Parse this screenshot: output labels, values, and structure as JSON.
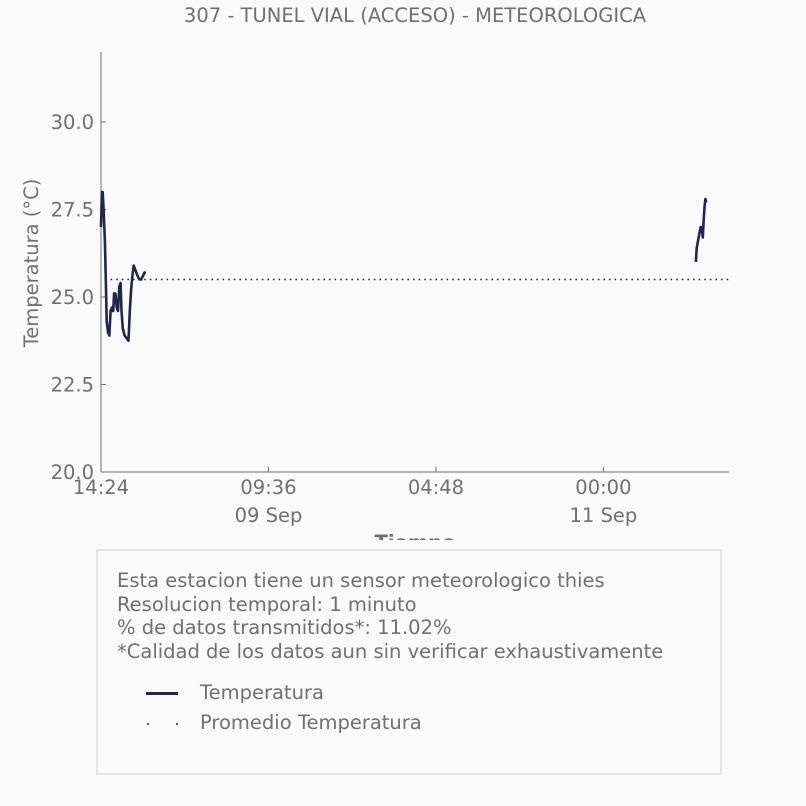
{
  "chart_data": {
    "type": "line",
    "title": "307 - TUNEL VIAL (ACCESO) - METEOROLOGICA",
    "xlabel": "Tiempo",
    "ylabel": "Temperatura (°C)",
    "ylim": [
      20.0,
      32.0
    ],
    "y_ticks": [
      "20.0",
      "22.5",
      "25.0",
      "27.5",
      "30.0"
    ],
    "x_ticks": [
      {
        "label": "14:24",
        "sublabel": "",
        "t": 0
      },
      {
        "label": "09:36",
        "sublabel": "09 Sep",
        "t": 19.2
      },
      {
        "label": "04:48",
        "sublabel": "",
        "t": 38.4
      },
      {
        "label": "00:00",
        "sublabel": "11 Sep",
        "t": 57.6
      }
    ],
    "x_unit": "hours since first tick",
    "xlim": [
      0,
      72
    ],
    "grid": false,
    "series": [
      {
        "name": "Temperatura",
        "style": "solid",
        "color": "#23254a",
        "segments": [
          [
            [
              0.0,
              27.0
            ],
            [
              0.1,
              28.0
            ],
            [
              0.2,
              28.0
            ],
            [
              0.3,
              27.5
            ],
            [
              0.45,
              26.6
            ],
            [
              0.55,
              25.5
            ],
            [
              0.65,
              24.3
            ],
            [
              0.8,
              24.0
            ],
            [
              0.95,
              23.9
            ],
            [
              1.1,
              24.6
            ],
            [
              1.25,
              24.7
            ],
            [
              1.4,
              24.6
            ],
            [
              1.5,
              25.1
            ],
            [
              1.65,
              25.1
            ],
            [
              1.8,
              24.7
            ],
            [
              1.95,
              24.6
            ],
            [
              2.1,
              25.3
            ],
            [
              2.25,
              25.4
            ],
            [
              2.35,
              24.6
            ],
            [
              2.5,
              24.1
            ],
            [
              2.7,
              23.9
            ],
            [
              2.85,
              23.85
            ],
            [
              3.0,
              23.8
            ],
            [
              3.15,
              23.75
            ],
            [
              3.3,
              24.6
            ],
            [
              3.45,
              25.2
            ],
            [
              3.6,
              25.6
            ],
            [
              3.75,
              25.9
            ],
            [
              3.9,
              25.8
            ],
            [
              4.05,
              25.7
            ],
            [
              4.2,
              25.6
            ],
            [
              4.4,
              25.5
            ],
            [
              4.6,
              25.5
            ],
            [
              4.8,
              25.6
            ],
            [
              5.0,
              25.7
            ],
            [
              5.15,
              25.7
            ]
          ],
          [
            [
              68.2,
              26.0
            ],
            [
              68.3,
              26.4
            ],
            [
              68.45,
              26.6
            ],
            [
              68.6,
              26.8
            ],
            [
              68.75,
              27.0
            ],
            [
              68.9,
              26.9
            ],
            [
              69.0,
              26.7
            ],
            [
              69.1,
              27.2
            ],
            [
              69.2,
              27.6
            ],
            [
              69.3,
              27.8
            ],
            [
              69.4,
              27.7
            ]
          ]
        ]
      },
      {
        "name": "Promedio Temperatura",
        "style": "dotted",
        "color": "#23254a",
        "value": 25.5
      }
    ]
  },
  "info_box": {
    "lines": [
      "Esta estacion tiene un sensor meteorologico thies",
      "Resolucion temporal: 1 minuto",
      "% de datos transmitidos*: 11.02%",
      "*Calidad de los datos aun sin verificar exhaustivamente"
    ],
    "legend": [
      {
        "label": "Temperatura",
        "style": "solid"
      },
      {
        "label": "Promedio Temperatura",
        "style": "dotted"
      }
    ]
  },
  "colors": {
    "series": "#23254a",
    "text": "#707070",
    "axis": "#707070",
    "box_border": "#e4e4e4",
    "background": "#fafafa"
  }
}
